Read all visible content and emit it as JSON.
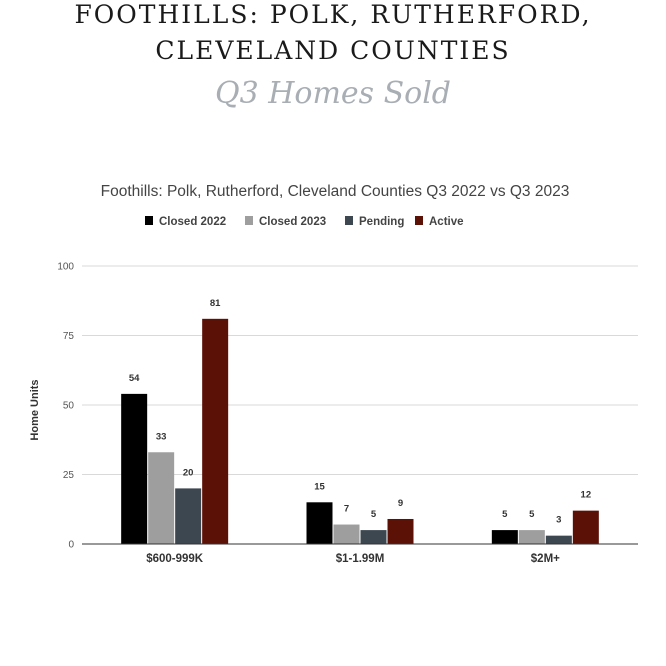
{
  "header": {
    "title_line_1": "FOOTHILLS: POLK, RUTHERFORD,",
    "title_line_2": "CLEVELAND COUNTIES",
    "subtitle": "Q3 Homes Sold"
  },
  "chart_data": {
    "type": "bar",
    "title": "Foothills: Polk, Rutherford, Cleveland Counties Q3 2022 vs Q3 2023",
    "xlabel": "",
    "ylabel": "Home Units",
    "ylim": [
      0,
      100
    ],
    "yticks": [
      0,
      25,
      50,
      75,
      100
    ],
    "grid": true,
    "legend_position": "top",
    "categories": [
      "$600-999K",
      "$1-1.99M",
      "$2M+"
    ],
    "series": [
      {
        "name": "Closed  2022",
        "color": "#000000",
        "values": [
          54,
          15,
          5
        ]
      },
      {
        "name": "Closed  2023",
        "color": "#9e9e9e",
        "values": [
          33,
          7,
          5
        ]
      },
      {
        "name": "Pending",
        "color": "#3c4750",
        "values": [
          20,
          5,
          3
        ]
      },
      {
        "name": "Active",
        "color": "#5c1106",
        "values": [
          81,
          9,
          12
        ]
      }
    ]
  }
}
